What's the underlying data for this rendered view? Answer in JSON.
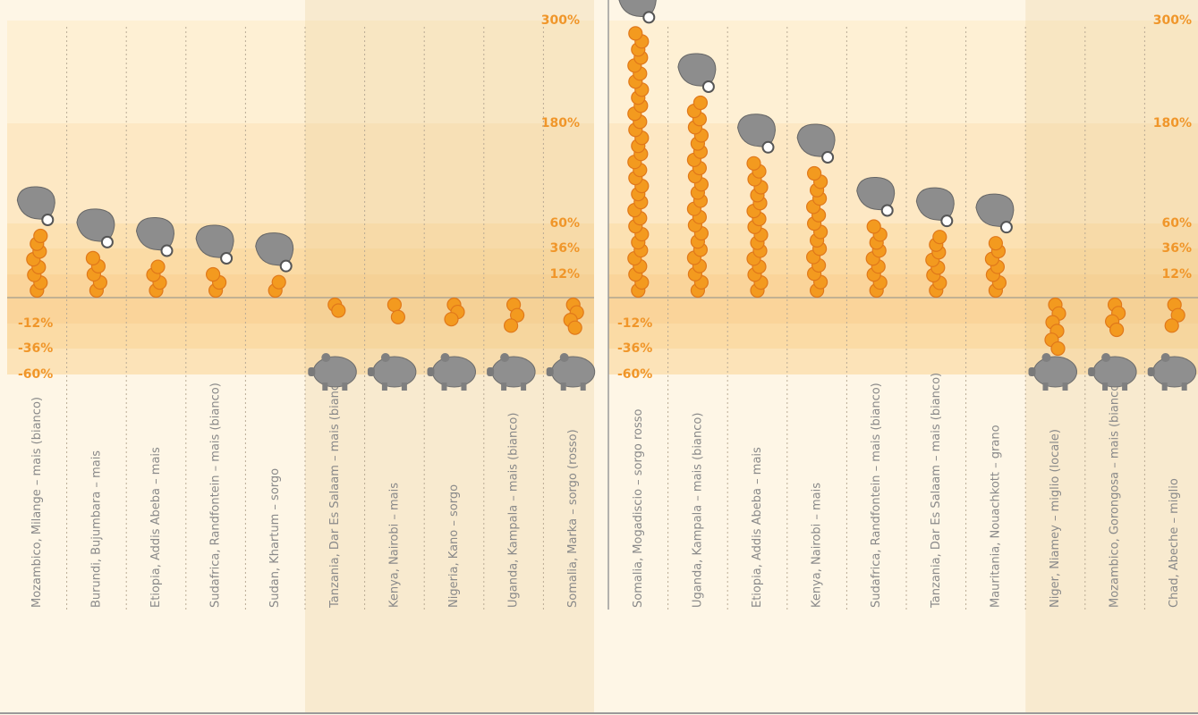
{
  "chart_data": [
    {
      "type": "coin",
      "color": "#f39a1f",
      "categories": [
        "Mozambico, Milange – mais (bianco)",
        "Burundi, Bujumbara – mais",
        "Etiopia, Addis Abeba – mais",
        "Sudafrica, Randfontein – mais (bianco)",
        "Sudan, Khartum – sorgo",
        "Tanzania, Dar Es Salaam – mais (bianco)",
        "Kenya, Nairobi – mais",
        "Nigeria, Kano – sorgo",
        "Uganda, Kampala – mais (bianco)",
        "Somalia, Marka – sorgo (rosso)"
      ],
      "values": [
        48,
        27,
        19,
        12,
        8,
        -6,
        -9,
        -10,
        -14,
        -16
      ],
      "ylim": [
        -60,
        300
      ],
      "yticks": [
        {
          "value": -60,
          "label": "-60%"
        },
        {
          "value": -36,
          "label": "-36%"
        },
        {
          "value": -12,
          "label": "-12%"
        },
        {
          "value": 12,
          "label": "12%"
        },
        {
          "value": 36,
          "label": "36%"
        },
        {
          "value": 60,
          "label": "60%"
        },
        {
          "value": 180,
          "label": "180%"
        },
        {
          "value": 300,
          "label": "300%"
        }
      ]
    },
    {
      "type": "coin",
      "color": "#f39a1f",
      "categories": [
        "Somalia, Mogadiscio – sorgo rosso",
        "Uganda, Kampala – mais (bianco)",
        "Etiopia, Addis Abeba – mais",
        "Kenya, Nairobi – mais",
        "Sudafrica, Randfontein – mais (bianco)",
        "Tanzania, Dar Es Salaam – mais (bianco)",
        "Mauritania, Nouachkott – grano",
        "Niger, Niamey – miglio (locale)",
        "Mozambico, Gorongosa – mais (bianco)",
        "Chad, Abeche – miglio"
      ],
      "values": [
        285,
        204,
        132,
        120,
        57,
        47,
        41,
        -36,
        -18,
        -14
      ],
      "ylim": [
        -60,
        300
      ],
      "yticks": [
        {
          "value": -60,
          "label": "-60%"
        },
        {
          "value": -36,
          "label": "-36%"
        },
        {
          "value": -12,
          "label": "-12%"
        },
        {
          "value": 12,
          "label": "12%"
        },
        {
          "value": 36,
          "label": "36%"
        },
        {
          "value": 60,
          "label": "60%"
        },
        {
          "value": 180,
          "label": "180%"
        },
        {
          "value": 300,
          "label": "300%"
        }
      ]
    }
  ]
}
